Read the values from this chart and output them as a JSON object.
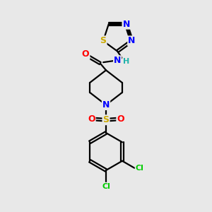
{
  "background_color": "#e8e8e8",
  "atom_colors": {
    "C": "#000000",
    "N": "#0000ff",
    "O": "#ff0000",
    "S": "#ccaa00",
    "Cl": "#00cc00",
    "H": "#20b2aa"
  },
  "bond_color": "#000000",
  "bond_width": 1.6,
  "figsize": [
    3.0,
    3.0
  ],
  "dpi": 100,
  "font_size": 9.0,
  "font_size_small": 8.0
}
